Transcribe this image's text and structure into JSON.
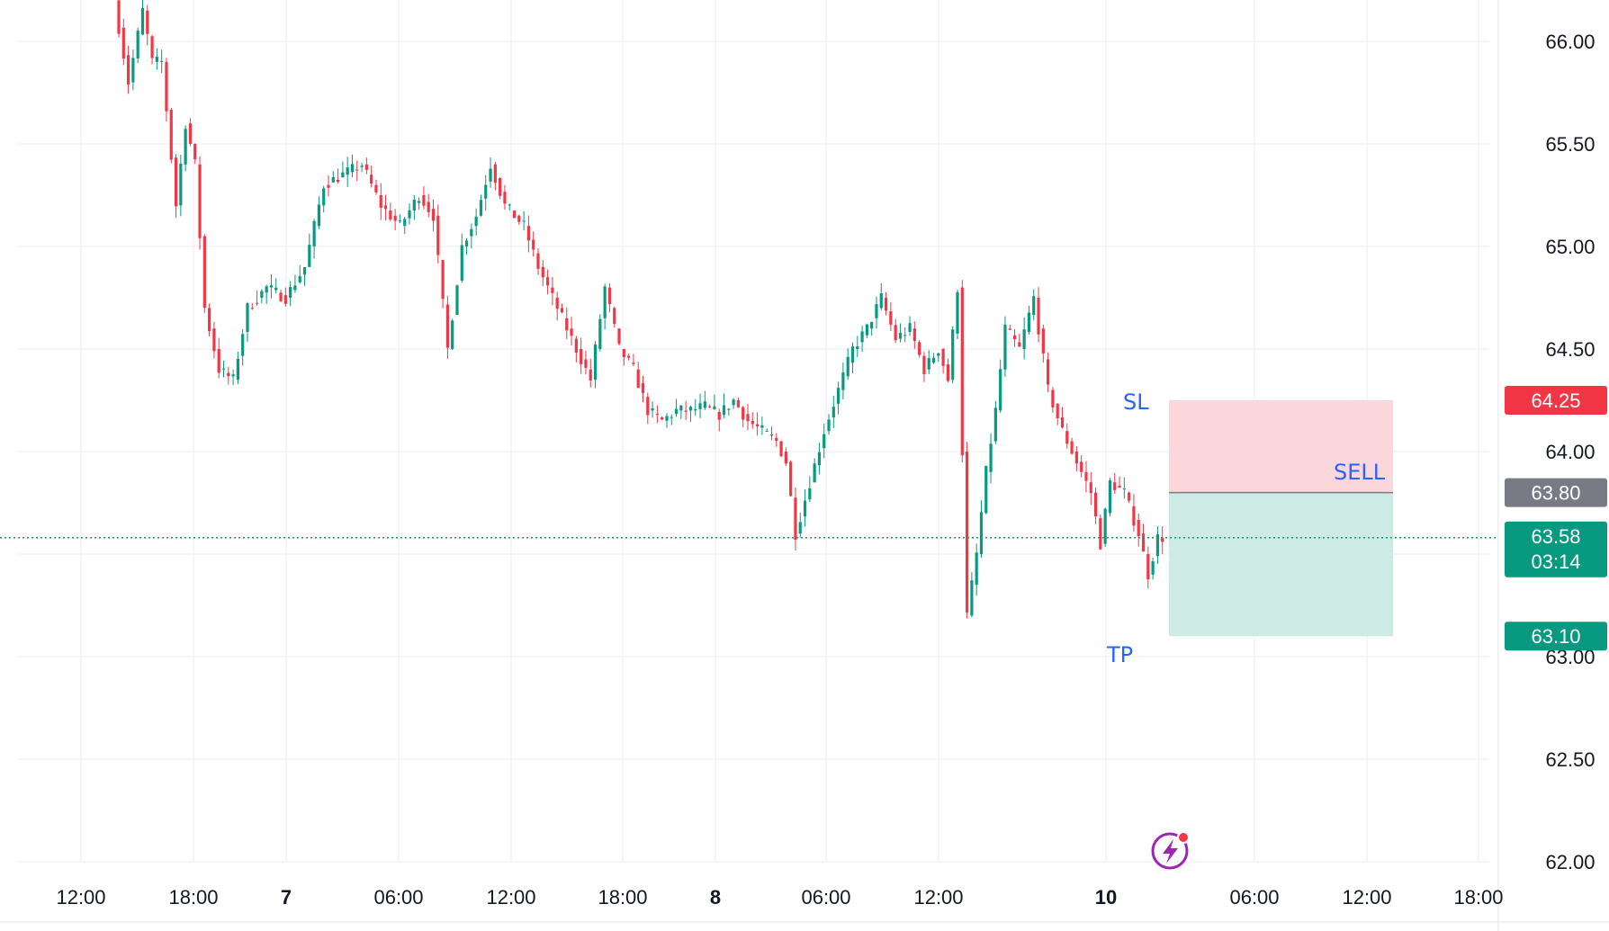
{
  "chart_data": {
    "type": "candlestick",
    "y_axis": {
      "ticks": [
        "66.00",
        "65.50",
        "65.00",
        "64.50",
        "64.00",
        "63.00",
        "62.50",
        "62.00"
      ],
      "range": [
        62.0,
        66.2
      ]
    },
    "x_axis": {
      "ticks": [
        {
          "label": "12:00",
          "bold": false
        },
        {
          "label": "18:00",
          "bold": false
        },
        {
          "label": "7",
          "bold": true
        },
        {
          "label": "06:00",
          "bold": false
        },
        {
          "label": "12:00",
          "bold": false
        },
        {
          "label": "18:00",
          "bold": false
        },
        {
          "label": "8",
          "bold": true
        },
        {
          "label": "06:00",
          "bold": false
        },
        {
          "label": "12:00",
          "bold": false
        },
        {
          "label": "10",
          "bold": true
        },
        {
          "label": "06:00",
          "bold": false
        },
        {
          "label": "12:00",
          "bold": false
        },
        {
          "label": "18:00",
          "bold": false
        }
      ]
    },
    "price_path": [
      [
        0,
        66.2
      ],
      [
        3,
        65.8
      ],
      [
        6,
        66.15
      ],
      [
        8,
        65.9
      ],
      [
        10,
        65.9
      ],
      [
        13,
        65.2
      ],
      [
        15,
        65.6
      ],
      [
        17,
        65.4
      ],
      [
        19,
        64.7
      ],
      [
        22,
        64.4
      ],
      [
        25,
        64.35
      ],
      [
        28,
        64.7
      ],
      [
        32,
        64.8
      ],
      [
        36,
        64.75
      ],
      [
        40,
        64.9
      ],
      [
        44,
        65.3
      ],
      [
        48,
        65.35
      ],
      [
        52,
        65.4
      ],
      [
        56,
        65.2
      ],
      [
        60,
        65.1
      ],
      [
        64,
        65.25
      ],
      [
        67,
        65.15
      ],
      [
        70,
        64.5
      ],
      [
        73,
        65.0
      ],
      [
        76,
        65.15
      ],
      [
        79,
        65.4
      ],
      [
        82,
        65.2
      ],
      [
        86,
        65.1
      ],
      [
        89,
        64.9
      ],
      [
        93,
        64.7
      ],
      [
        97,
        64.5
      ],
      [
        100,
        64.35
      ],
      [
        103,
        64.8
      ],
      [
        106,
        64.5
      ],
      [
        109,
        64.4
      ],
      [
        112,
        64.2
      ],
      [
        115,
        64.15
      ],
      [
        118,
        64.2
      ],
      [
        121,
        64.2
      ],
      [
        124,
        64.22
      ],
      [
        127,
        64.18
      ],
      [
        130,
        64.25
      ],
      [
        133,
        64.15
      ],
      [
        136,
        64.1
      ],
      [
        139,
        64.05
      ],
      [
        141,
        63.95
      ],
      [
        143,
        63.6
      ],
      [
        146,
        63.85
      ],
      [
        149,
        64.1
      ],
      [
        152,
        64.3
      ],
      [
        155,
        64.5
      ],
      [
        158,
        64.6
      ],
      [
        161,
        64.75
      ],
      [
        164,
        64.55
      ],
      [
        167,
        64.6
      ],
      [
        170,
        64.4
      ],
      [
        173,
        64.5
      ],
      [
        175,
        64.35
      ],
      [
        177,
        64.8
      ],
      [
        179,
        63.2
      ],
      [
        181,
        63.5
      ],
      [
        183,
        63.9
      ],
      [
        185,
        64.2
      ],
      [
        187,
        64.6
      ],
      [
        190,
        64.5
      ],
      [
        193,
        64.75
      ],
      [
        196,
        64.3
      ],
      [
        199,
        64.1
      ],
      [
        202,
        63.95
      ],
      [
        205,
        63.8
      ],
      [
        207,
        63.55
      ],
      [
        209,
        63.85
      ],
      [
        212,
        63.8
      ],
      [
        215,
        63.6
      ],
      [
        217,
        63.4
      ],
      [
        219,
        63.58
      ]
    ],
    "current_price": {
      "value": "63.58",
      "countdown": "03:14"
    },
    "position": {
      "side": "SELL",
      "entry": {
        "price": 63.8,
        "label": "63.80"
      },
      "stop_loss": {
        "price": 64.25,
        "label": "64.25"
      },
      "take_profit": {
        "price": 63.1,
        "label": "63.10"
      }
    },
    "annotations": {
      "sl": "SL",
      "sell": "SELL",
      "tp": "TP"
    },
    "colors": {
      "up": "#089981",
      "down": "#f23645",
      "grid": "#f0f3fa",
      "sl_zone": "#fbd7db",
      "tp_zone": "#cdebe4",
      "entry_badge": "#787b86",
      "sl_badge": "#f23645",
      "tp_badge": "#089981",
      "annotation_text": "#2962ff"
    },
    "icons": {
      "bottom_icon": "lightning-bolt-icon"
    }
  }
}
